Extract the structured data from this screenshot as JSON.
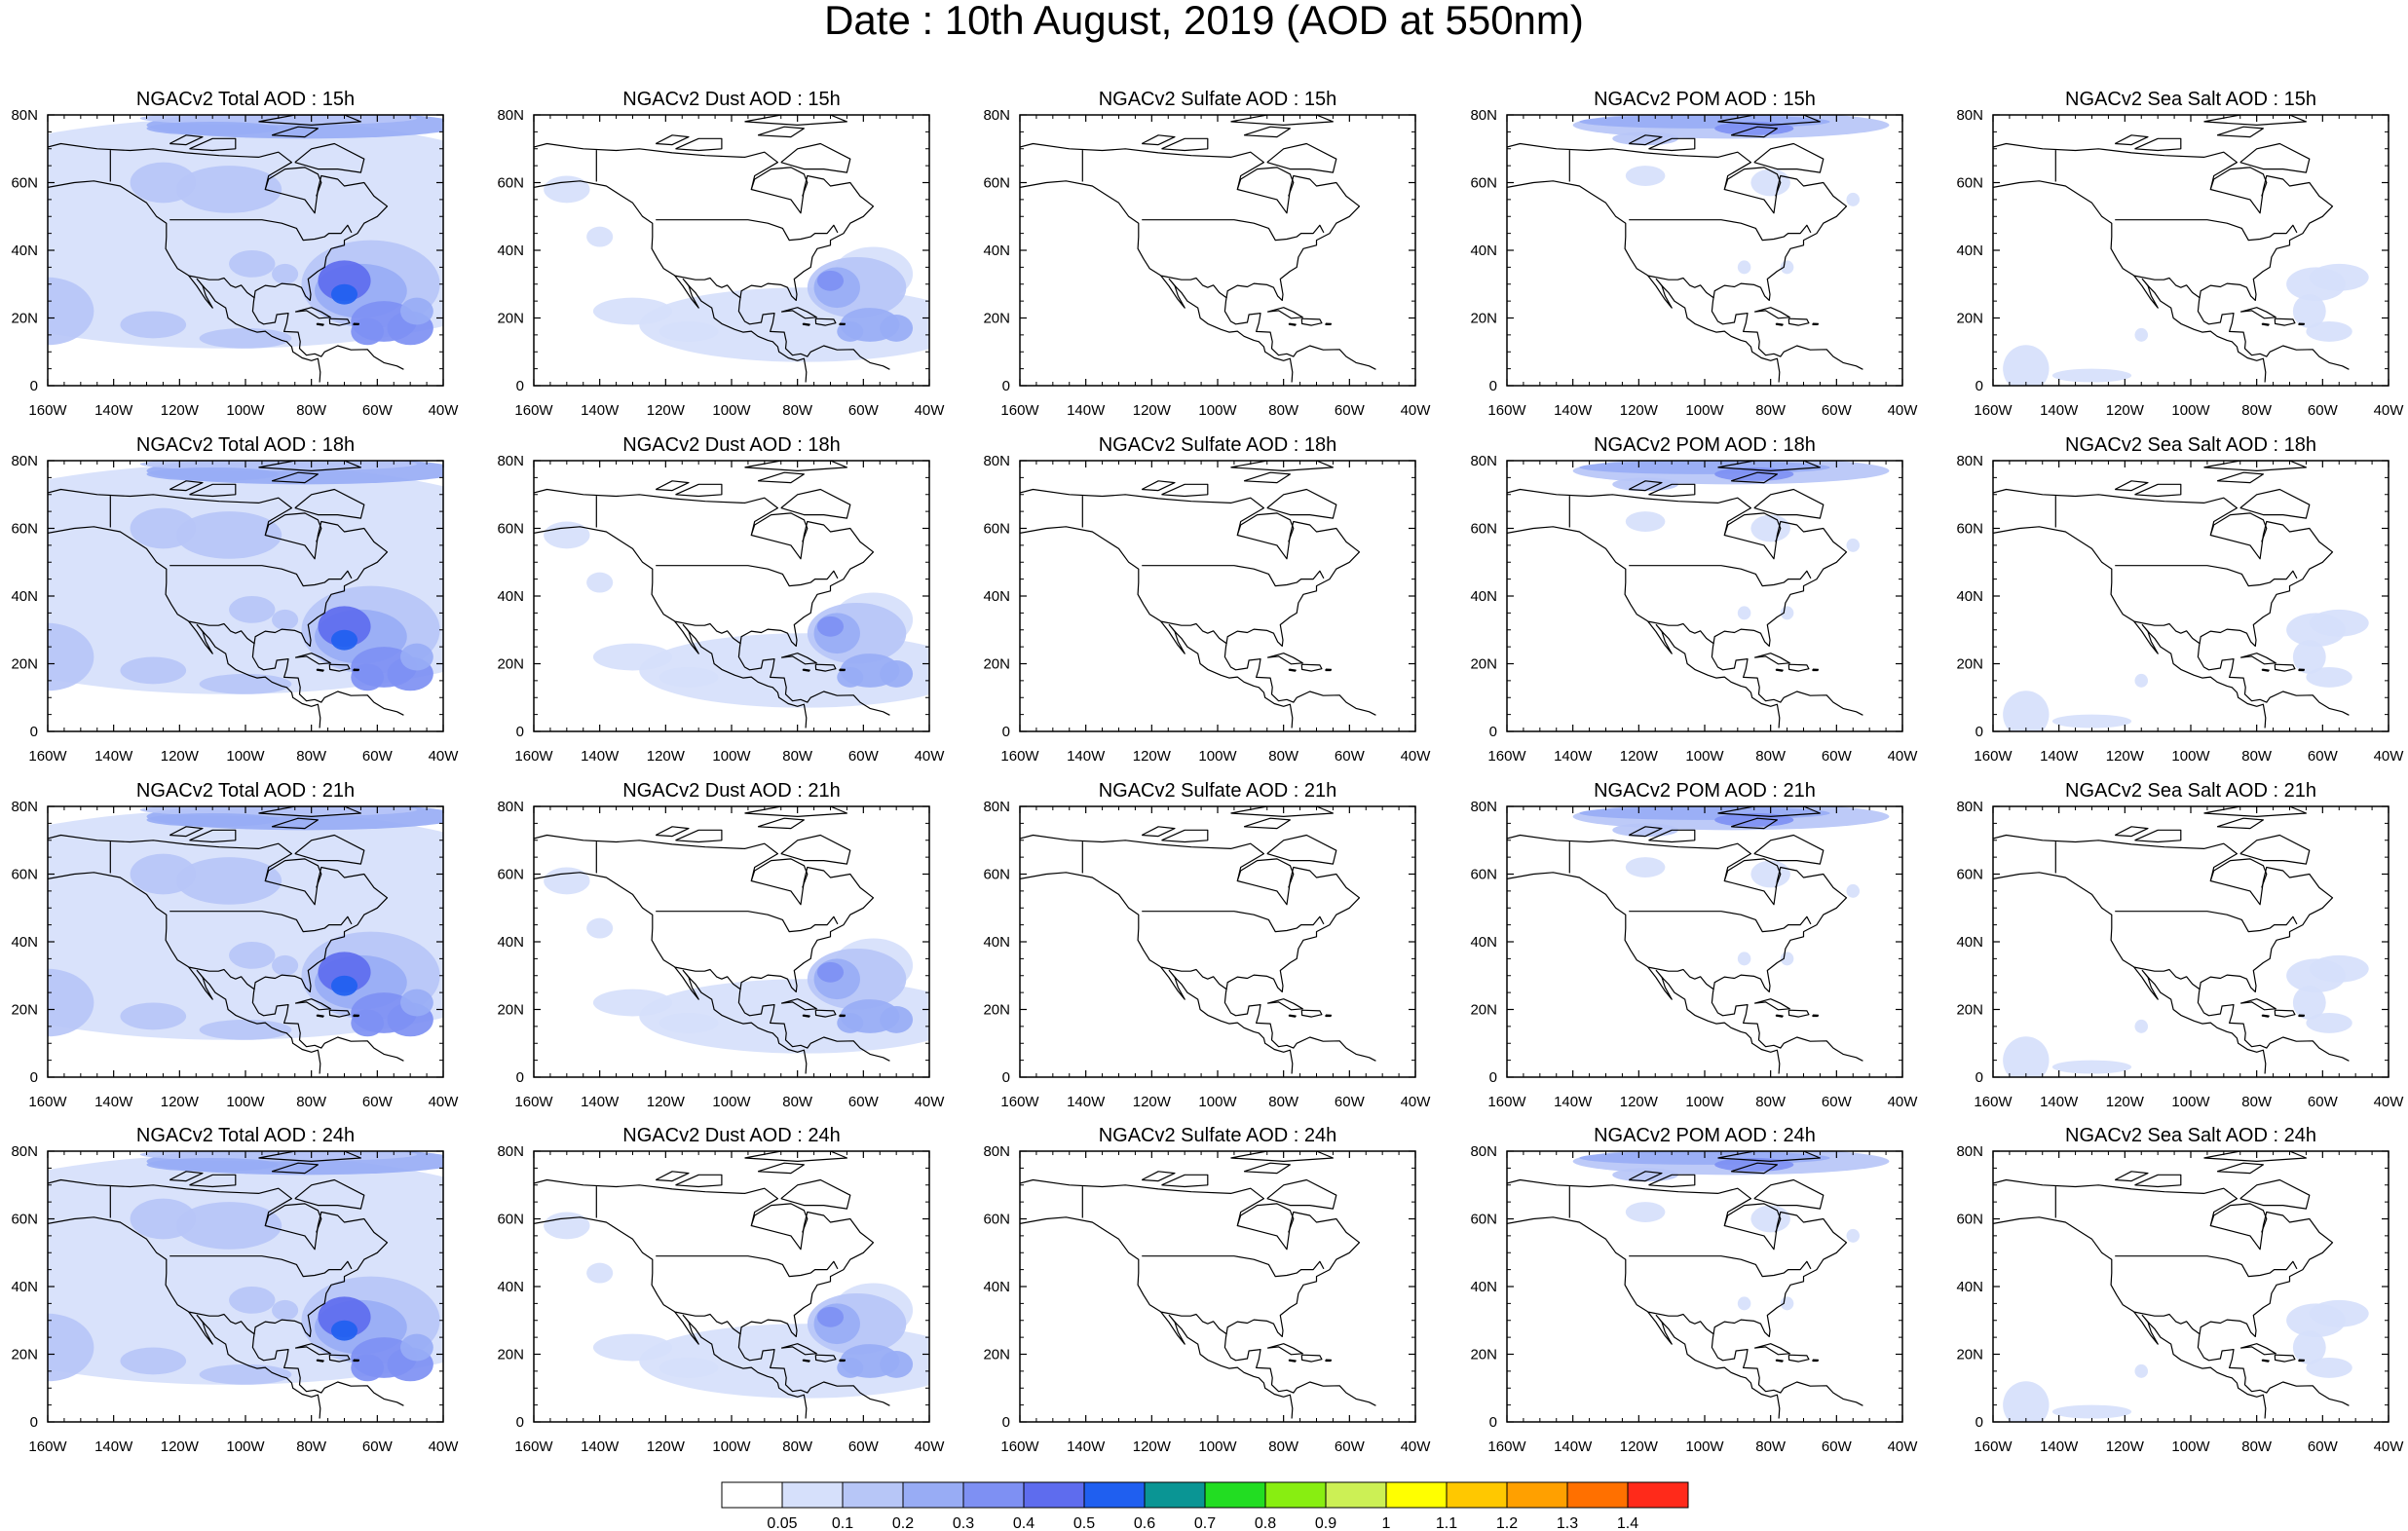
{
  "title": "Date : 10th August, 2019 (AOD at 550nm)",
  "x_ticks": [
    "160W",
    "140W",
    "120W",
    "100W",
    "80W",
    "60W",
    "40W"
  ],
  "y_ticks": [
    "80N",
    "60N",
    "40N",
    "20N",
    "0"
  ],
  "panels": [
    [
      "NGACv2 Total AOD : 15h",
      "NGACv2 Dust AOD : 15h",
      "NGACv2 Sulfate AOD : 15h",
      "NGACv2 POM AOD : 15h",
      "NGACv2 Sea Salt AOD : 15h"
    ],
    [
      "NGACv2 Total AOD : 18h",
      "NGACv2 Dust AOD : 18h",
      "NGACv2 Sulfate AOD : 18h",
      "NGACv2 POM AOD : 18h",
      "NGACv2 Sea Salt AOD : 18h"
    ],
    [
      "NGACv2 Total AOD : 21h",
      "NGACv2 Dust AOD : 21h",
      "NGACv2 Sulfate AOD : 21h",
      "NGACv2 POM AOD : 21h",
      "NGACv2 Sea Salt AOD : 21h"
    ],
    [
      "NGACv2 Total AOD : 24h",
      "NGACv2 Dust AOD : 24h",
      "NGACv2 Sulfate AOD : 24h",
      "NGACv2 POM AOD : 24h",
      "NGACv2 Sea Salt  AOD : 24h"
    ]
  ],
  "colorbar": {
    "labels": [
      "0.05",
      "0.1",
      "0.2",
      "0.3",
      "0.4",
      "0.5",
      "0.6",
      "0.7",
      "0.8",
      "0.9",
      "1",
      "1.1",
      "1.2",
      "1.3",
      "1.4"
    ],
    "colors": [
      "#ffffff",
      "#d6e0fb",
      "#b7c6f7",
      "#98acf5",
      "#7e90f3",
      "#5e6cee",
      "#1f5ff0",
      "#0a9594",
      "#22dd22",
      "#88ee11",
      "#ccf055",
      "#ffff00",
      "#ffc800",
      "#ffa000",
      "#ff7000",
      "#ff2a1a"
    ]
  }
}
